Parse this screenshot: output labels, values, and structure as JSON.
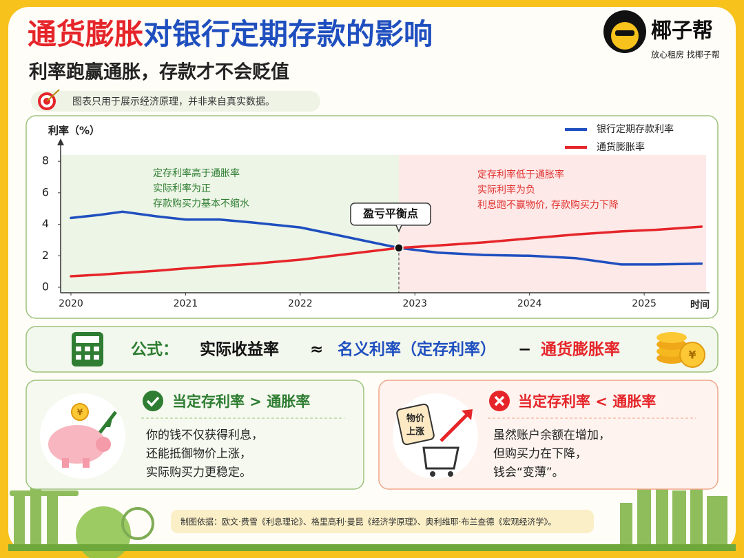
{
  "header": {
    "title_highlight": "通货膨胀",
    "title_rest": "对银行定期存款的影响",
    "subtitle": "利率跑赢通胀，存款才不会贬值",
    "note": "图表只用于展示经济原理，并非来自真实数据。",
    "brand": "椰子帮",
    "slogan": "放心租房  找椰子帮"
  },
  "chart_data": {
    "type": "line",
    "y_label": "利率（%）",
    "x_label": "时间",
    "x": [
      2020,
      2020.25,
      2020.45,
      2020.75,
      2021,
      2021.3,
      2021.6,
      2022,
      2022.4,
      2022.86,
      2023.2,
      2023.6,
      2024,
      2024.4,
      2024.8,
      2025.1,
      2025.5
    ],
    "series": [
      {
        "name": "银行定期存款利率",
        "color": "#1f4fbf",
        "values": [
          4.4,
          4.6,
          4.8,
          4.5,
          4.3,
          4.3,
          4.1,
          3.8,
          3.2,
          2.5,
          2.2,
          2.05,
          2.0,
          1.85,
          1.45,
          1.45,
          1.5
        ]
      },
      {
        "name": "通货膨胀率",
        "color": "#e5252a",
        "values": [
          0.7,
          0.8,
          0.9,
          1.05,
          1.2,
          1.35,
          1.5,
          1.75,
          2.1,
          2.5,
          2.65,
          2.85,
          3.1,
          3.35,
          3.55,
          3.65,
          3.85
        ]
      }
    ],
    "xlim": [
      2019.91,
      2025.54
    ],
    "xticks": [
      2020,
      2021,
      2022,
      2023,
      2024,
      2025
    ],
    "ylim": [
      -0.35,
      8.4
    ],
    "yticks": [
      0,
      2,
      4,
      6,
      8
    ],
    "breakeven": {
      "x": 2022.86,
      "y": 2.5,
      "label": "盈亏平衡点"
    },
    "left_note": [
      "定存利率高于通胀率",
      "实际利率为正",
      "存款购买力基本不缩水"
    ],
    "right_note": [
      "定存利率低于通胀率",
      "实际利率为负",
      "利息跑不赢物价, 存款购买力下降"
    ],
    "legend": "top-right"
  },
  "formula": {
    "label": "公式：",
    "lhs": "实际收益率",
    "approx": "≈",
    "nominal": "名义利率（定存利率）",
    "minus": "−",
    "inflation": "通货膨胀率"
  },
  "currency_symbol": "¥",
  "cards": [
    {
      "title": "当定存利率 > 通胀率",
      "lines": [
        "你的钱不仅获得利息，",
        "还能抵御物价上涨，",
        "实际购买力更稳定。"
      ]
    },
    {
      "title": "当定存利率 < 通胀率",
      "tag": [
        "物价",
        "上涨"
      ],
      "lines": [
        "虽然账户余额在增加，",
        "但购买力在下降，",
        "钱会“变薄”。"
      ]
    }
  ],
  "footer": {
    "sources": "制图依据：欧文·费雪《利息理论》、格里高利·曼昆《经济学原理》、奥利维耶·布兰查德《宏观经济学》。"
  }
}
